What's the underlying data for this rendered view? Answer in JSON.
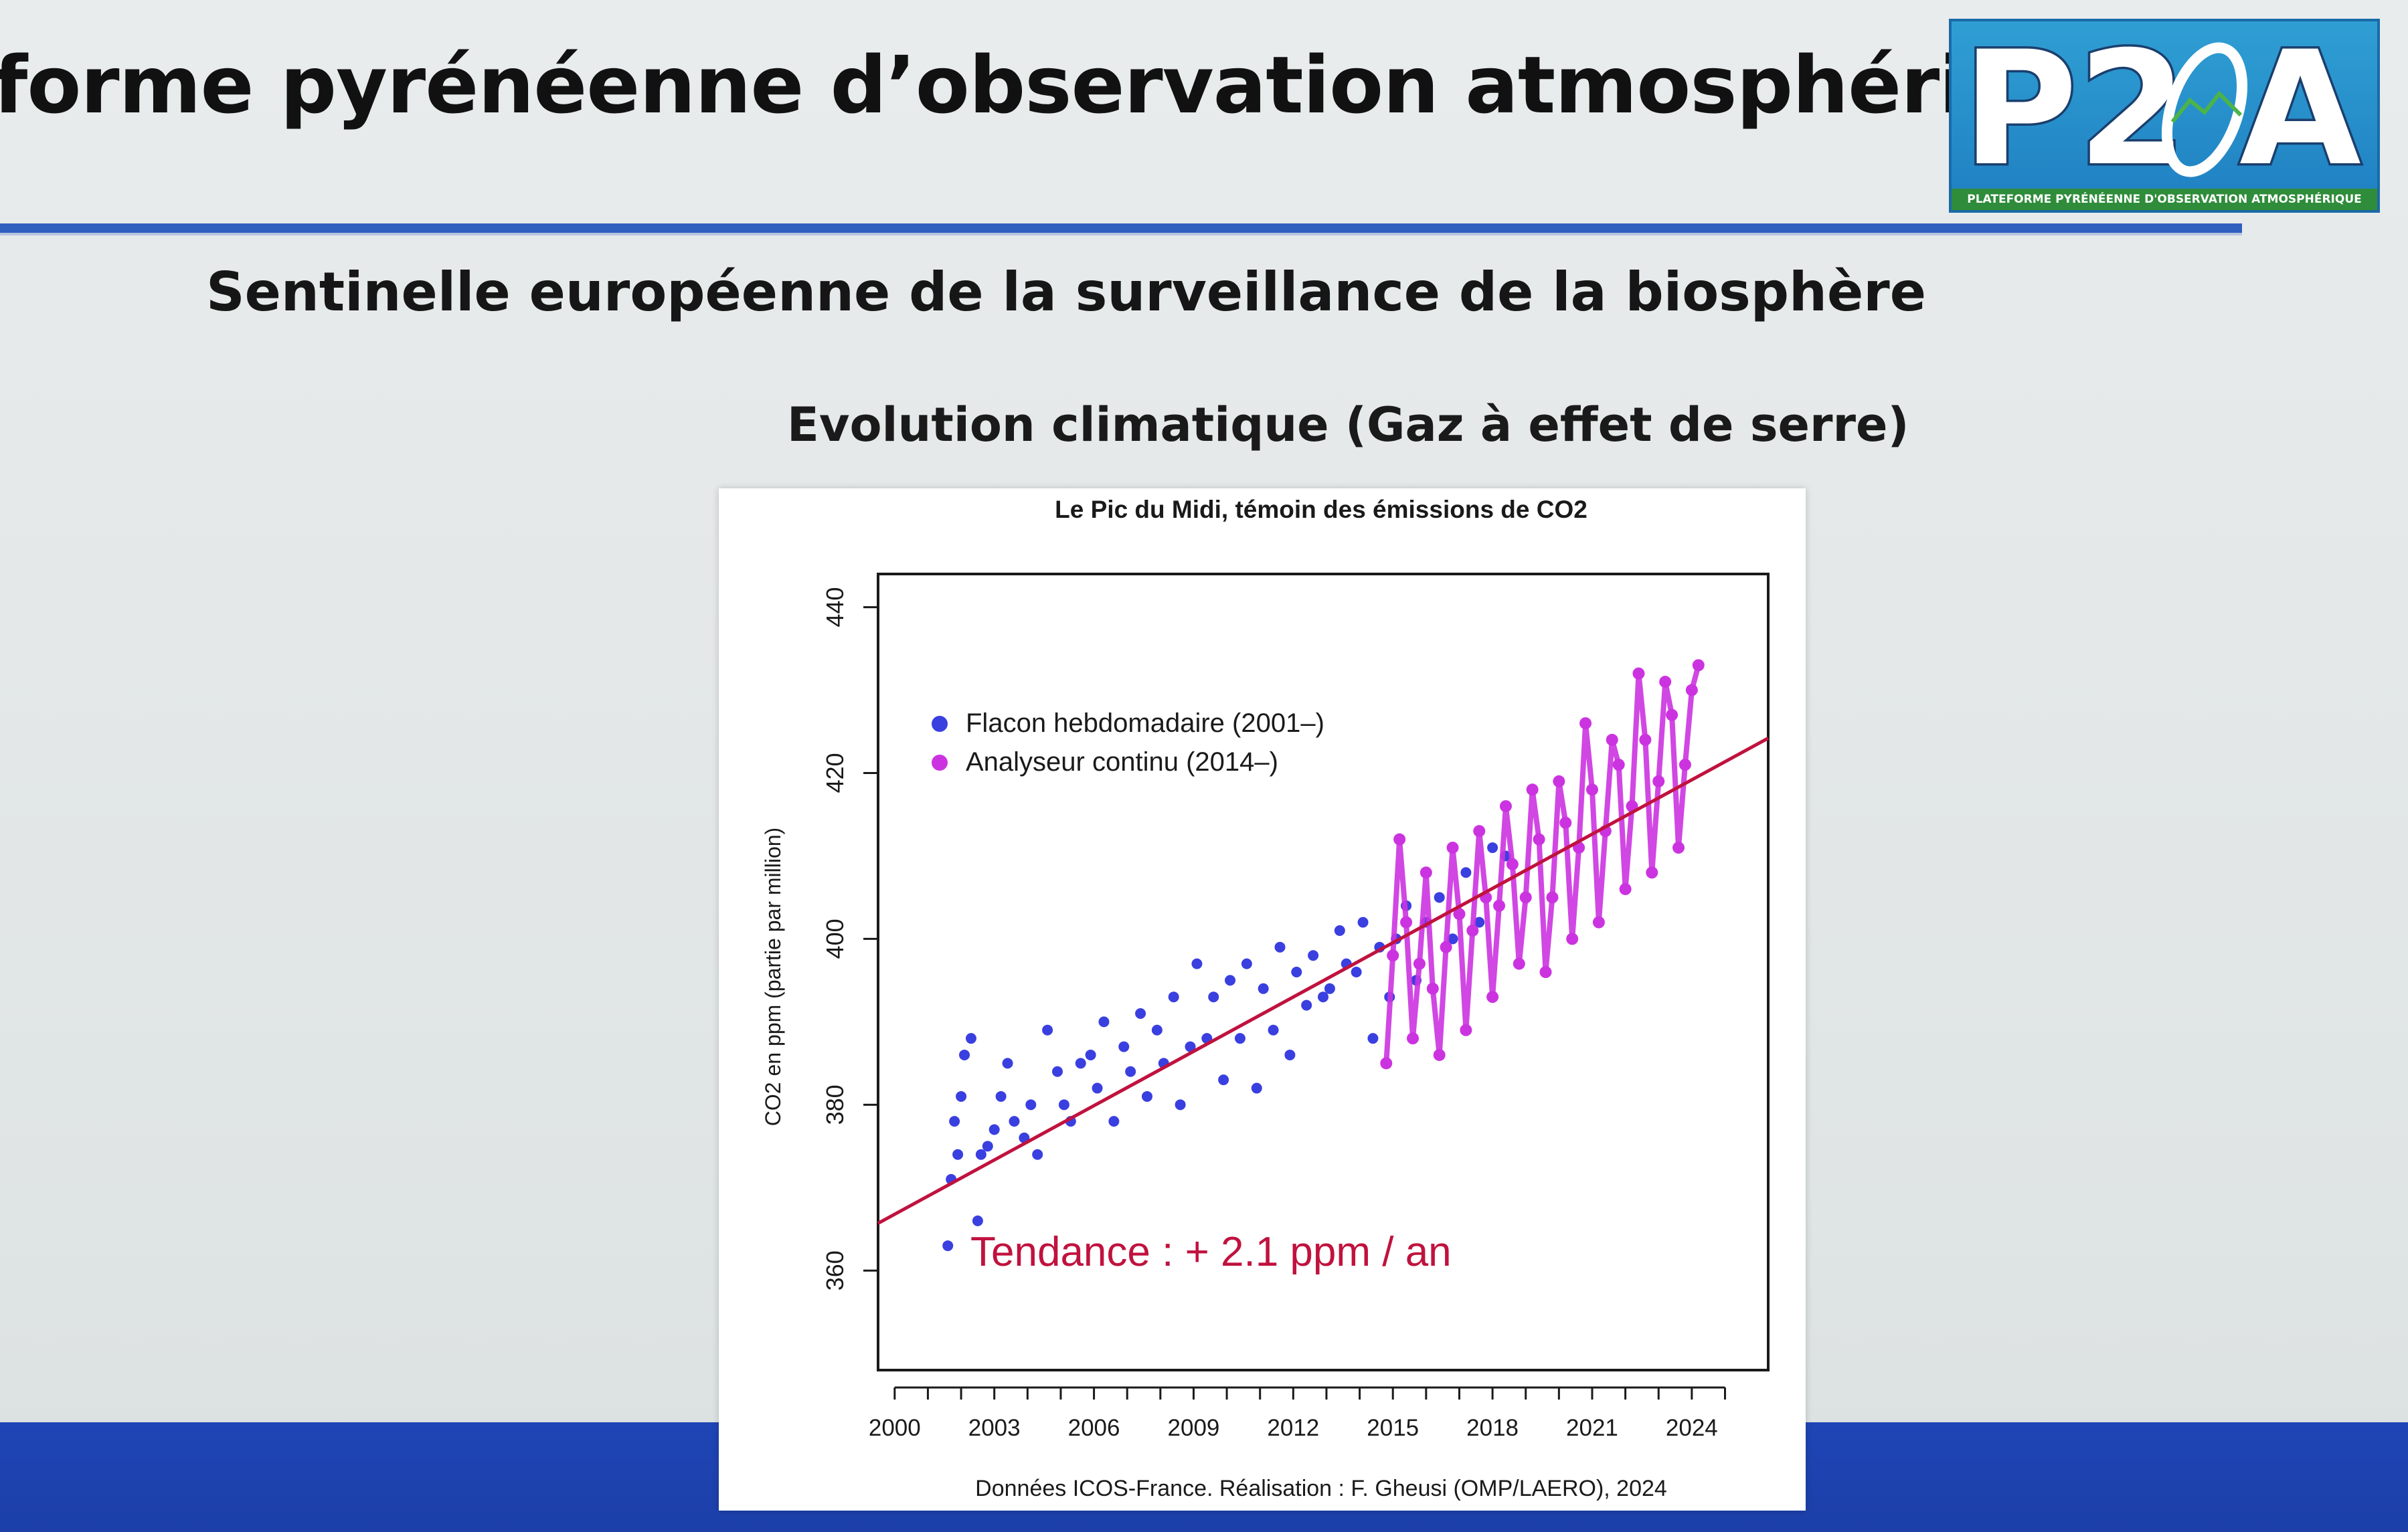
{
  "header": {
    "title": "forme pyrénéenne d’observation atmosphérique",
    "logo_text": "P2OA",
    "logo_subtext": "PLATEFORME PYRÉNÉENNE D'OBSERVATION ATMOSPHÉRIQUE"
  },
  "subtitle": "Sentinelle européenne de la surveillance de la biosphère",
  "section_heading": "Evolution climatique (Gaz à effet de serre)",
  "colors": {
    "header_rule": "#2f5fbf",
    "footer_band": "#1f45b6",
    "weekly_flask": "#3a3fe0",
    "continuous_analyzer": "#cc33e0",
    "trend_line": "#c0123e",
    "logo_blue": "#2592cf",
    "logo_green": "#2e8c3a"
  },
  "chart_data": {
    "type": "scatter",
    "title": "Le Pic du Midi, témoin des émissions de CO2",
    "xlabel": "",
    "ylabel": "CO2 en ppm (partie par million)",
    "xlim": [
      1999.5,
      2026.3
    ],
    "ylim": [
      348,
      444
    ],
    "x_ticks": [
      2000,
      2003,
      2006,
      2009,
      2012,
      2015,
      2018,
      2021,
      2024
    ],
    "y_ticks": [
      360,
      380,
      400,
      420,
      440
    ],
    "grid": false,
    "legend_position": "upper-left",
    "annotation": "Tendance : + 2.1 ppm / an",
    "caption": "Données ICOS-France. Réalisation : F. Gheusi (OMP/LAERO), 2024",
    "series": [
      {
        "name": "Flacon hebdomadaire (2001–)",
        "marker": "point",
        "x": [
          2001.6,
          2001.7,
          2001.8,
          2001.9,
          2002.0,
          2002.1,
          2002.3,
          2002.5,
          2002.6,
          2002.8,
          2003.0,
          2003.2,
          2003.4,
          2003.6,
          2003.9,
          2004.1,
          2004.3,
          2004.6,
          2004.9,
          2005.1,
          2005.3,
          2005.6,
          2005.9,
          2006.1,
          2006.3,
          2006.6,
          2006.9,
          2007.1,
          2007.4,
          2007.6,
          2007.9,
          2008.1,
          2008.4,
          2008.6,
          2008.9,
          2009.1,
          2009.4,
          2009.6,
          2009.9,
          2010.1,
          2010.4,
          2010.6,
          2010.9,
          2011.1,
          2011.4,
          2011.6,
          2011.9,
          2012.1,
          2012.4,
          2012.6,
          2012.9,
          2013.1,
          2013.4,
          2013.6,
          2013.9,
          2014.1,
          2014.4,
          2014.6,
          2014.9,
          2015.1,
          2015.4,
          2015.7,
          2016.0,
          2016.4,
          2016.8,
          2017.2,
          2017.6,
          2018.0,
          2018.4
        ],
        "y": [
          363,
          371,
          378,
          374,
          381,
          386,
          388,
          366,
          374,
          375,
          377,
          381,
          385,
          378,
          376,
          380,
          374,
          389,
          384,
          380,
          378,
          385,
          386,
          382,
          390,
          378,
          387,
          384,
          391,
          381,
          389,
          385,
          393,
          380,
          387,
          397,
          388,
          393,
          383,
          395,
          388,
          397,
          382,
          394,
          389,
          399,
          386,
          396,
          392,
          398,
          393,
          394,
          401,
          397,
          396,
          402,
          388,
          399,
          393,
          400,
          404,
          395,
          402,
          405,
          400,
          408,
          402,
          411,
          410
        ]
      },
      {
        "name": "Analyseur continu (2014–)",
        "marker": "point",
        "x": [
          2014.8,
          2015.0,
          2015.2,
          2015.4,
          2015.6,
          2015.8,
          2016.0,
          2016.2,
          2016.4,
          2016.6,
          2016.8,
          2017.0,
          2017.2,
          2017.4,
          2017.6,
          2017.8,
          2018.0,
          2018.2,
          2018.4,
          2018.6,
          2018.8,
          2019.0,
          2019.2,
          2019.4,
          2019.6,
          2019.8,
          2020.0,
          2020.2,
          2020.4,
          2020.6,
          2020.8,
          2021.0,
          2021.2,
          2021.4,
          2021.6,
          2021.8,
          2022.0,
          2022.2,
          2022.4,
          2022.6,
          2022.8,
          2023.0,
          2023.2,
          2023.4,
          2023.6,
          2023.8,
          2024.0,
          2024.2
        ],
        "y": [
          385,
          398,
          412,
          402,
          388,
          397,
          408,
          394,
          386,
          399,
          411,
          403,
          389,
          401,
          413,
          405,
          393,
          404,
          416,
          409,
          397,
          405,
          418,
          412,
          396,
          405,
          419,
          414,
          400,
          411,
          426,
          418,
          402,
          413,
          424,
          421,
          406,
          416,
          432,
          424,
          408,
          419,
          431,
          427,
          411,
          421,
          430,
          433
        ]
      },
      {
        "name": "Tendance",
        "type": "line",
        "x": [
          1999.5,
          2026.3
        ],
        "y": [
          365.7,
          424.2
        ]
      }
    ]
  }
}
